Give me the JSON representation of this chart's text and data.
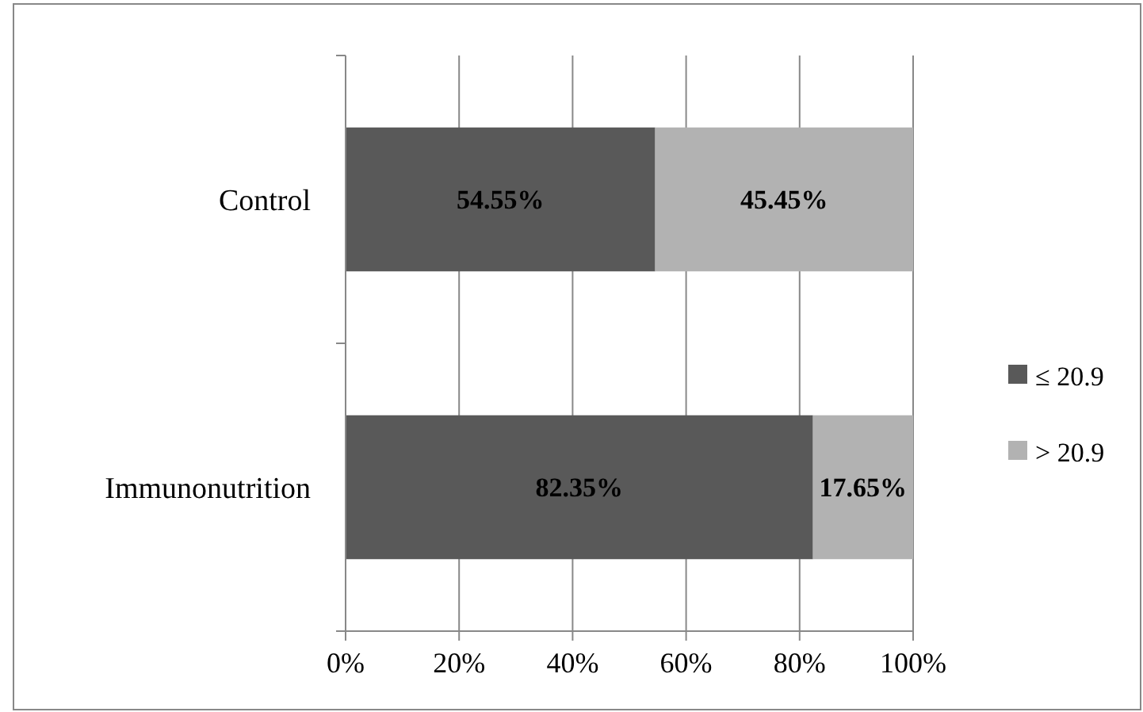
{
  "chart_data": {
    "type": "bar",
    "orientation": "horizontal",
    "stacked": true,
    "categories": [
      "Control",
      "Immunonutrition"
    ],
    "series": [
      {
        "name": "≤ 20.9",
        "color": "#595959",
        "values": [
          54.55,
          82.35
        ],
        "value_labels": [
          "54.55%",
          "82.35%"
        ]
      },
      {
        "name": "> 20.9",
        "color": "#b2b2b2",
        "values": [
          45.45,
          17.65
        ],
        "value_labels": [
          "45.45%",
          "17.65%"
        ]
      }
    ],
    "xlim": [
      0,
      100
    ],
    "xticks": [
      {
        "value": 0,
        "label": "0%"
      },
      {
        "value": 20,
        "label": "20%"
      },
      {
        "value": 40,
        "label": "40%"
      },
      {
        "value": 60,
        "label": "60%"
      },
      {
        "value": 80,
        "label": "80%"
      },
      {
        "value": 100,
        "label": "100%"
      }
    ],
    "grid": "x",
    "legend": "right"
  }
}
